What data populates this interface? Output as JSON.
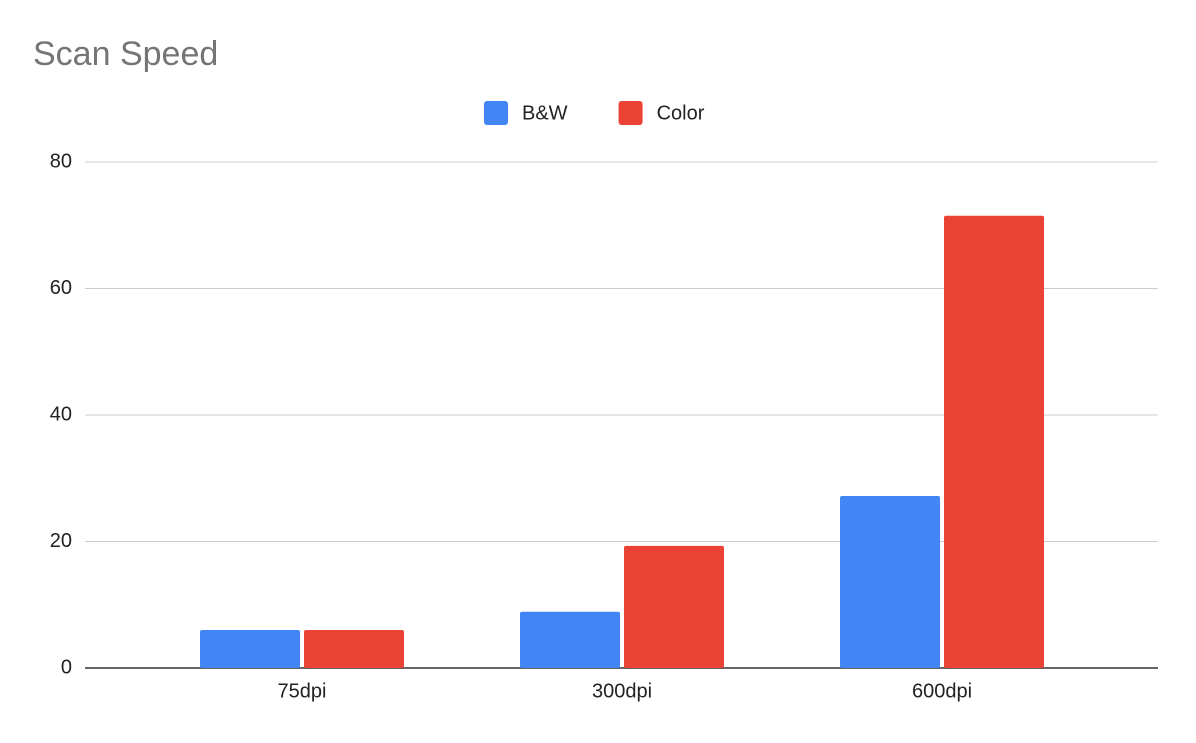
{
  "chart_data": {
    "type": "bar",
    "title": "Scan Speed",
    "categories": [
      "75dpi",
      "300dpi",
      "600dpi"
    ],
    "series": [
      {
        "name": "B&W",
        "color": "#4285f4",
        "values": [
          6.0,
          8.9,
          27.2
        ]
      },
      {
        "name": "Color",
        "color": "#ea4335",
        "values": [
          6.0,
          19.3,
          71.5
        ]
      }
    ],
    "ylim": [
      0,
      80
    ],
    "yticks": [
      0,
      20,
      40,
      60,
      80
    ],
    "grid": true,
    "legend": "top"
  }
}
